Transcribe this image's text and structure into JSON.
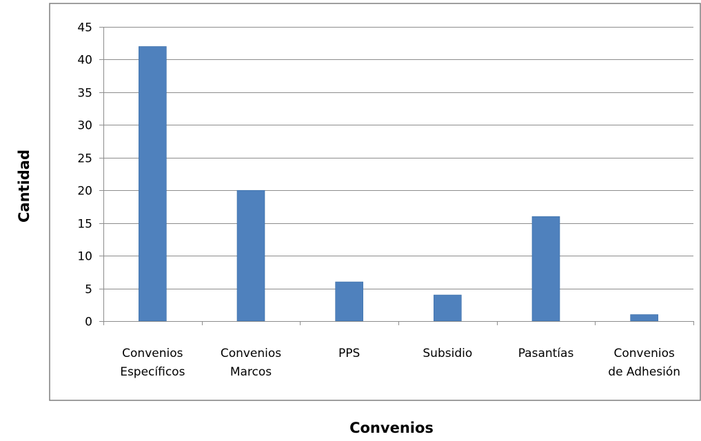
{
  "chart_data": {
    "type": "bar",
    "title": "",
    "xlabel": "Convenios",
    "ylabel": "Cantidad",
    "categories": [
      [
        "Convenios",
        "Específicos"
      ],
      [
        "Convenios",
        "Marcos"
      ],
      [
        "PPS"
      ],
      [
        "Subsidio"
      ],
      [
        "Pasantías"
      ],
      [
        "Convenios",
        "de Adhesión"
      ]
    ],
    "values": [
      42,
      20,
      6,
      4,
      16,
      1
    ],
    "ylim": [
      0,
      45
    ],
    "yticks": [
      0,
      5,
      10,
      15,
      20,
      25,
      30,
      35,
      40,
      45
    ],
    "grid": true,
    "legend": "none",
    "colors": {
      "bar": "#4F81BD",
      "bar_edge": "#3A6EA8",
      "grid": "#8C8C8C",
      "axis": "#8C8C8C",
      "frame": "#7F7F7F"
    }
  }
}
